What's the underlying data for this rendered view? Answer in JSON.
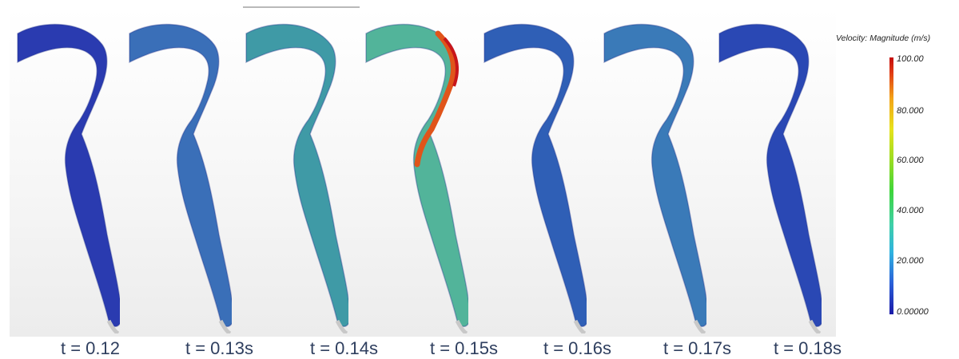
{
  "snapshots": [
    {
      "label": "t = 0.12",
      "fill": "#2a3bb0"
    },
    {
      "label": "t = 0.13s",
      "fill": "#3a6fb8"
    },
    {
      "label": "t = 0.14s",
      "fill": "#3f9aa6"
    },
    {
      "label": "t = 0.15s",
      "fill": "#52b49a"
    },
    {
      "label": "t = 0.16s",
      "fill": "#2f5fb6"
    },
    {
      "label": "t = 0.17s",
      "fill": "#3a7ab8"
    },
    {
      "label": "t = 0.18s",
      "fill": "#2a48b4"
    }
  ],
  "legend": {
    "title": "Velocity: Magnitude (m/s)",
    "ticks": [
      "100.00",
      "80.000",
      "60.000",
      "40.000",
      "20.000",
      "0.00000"
    ]
  }
}
